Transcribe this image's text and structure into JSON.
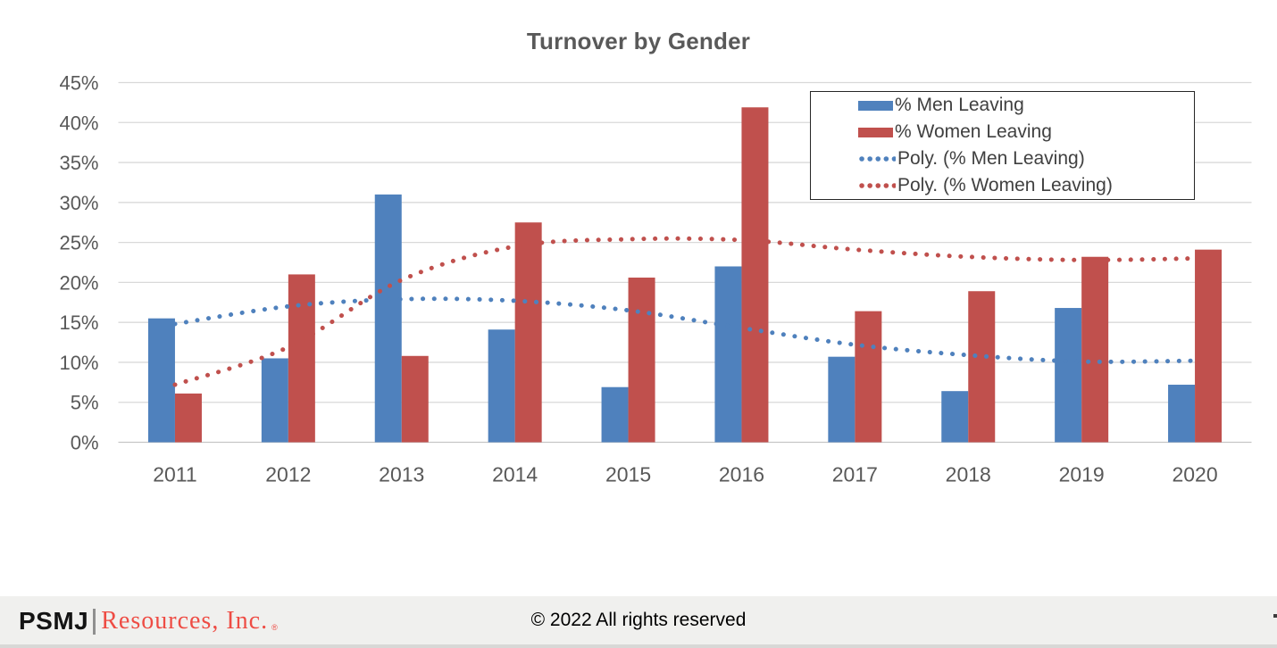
{
  "title": "Turnover by Gender",
  "chart_data": {
    "type": "bar",
    "title": "Turnover by Gender",
    "categories": [
      "2011",
      "2012",
      "2013",
      "2014",
      "2015",
      "2016",
      "2017",
      "2018",
      "2019",
      "2020"
    ],
    "series": [
      {
        "name": "% Men Leaving",
        "color": "#4f81bd",
        "values": [
          15.5,
          10.5,
          31.0,
          14.1,
          6.9,
          22.0,
          10.7,
          6.4,
          16.8,
          7.2
        ]
      },
      {
        "name": "% Women Leaving",
        "color": "#c0504d",
        "values": [
          6.1,
          21.0,
          10.8,
          27.5,
          20.6,
          41.9,
          16.4,
          18.9,
          23.2,
          24.1
        ]
      }
    ],
    "trendlines": [
      {
        "name": "Poly. (% Men Leaving)",
        "color": "#4f81bd",
        "style": "dotted",
        "values": [
          14.8,
          17.0,
          17.9,
          17.7,
          16.5,
          14.3,
          12.2,
          10.9,
          10.1,
          10.2
        ]
      },
      {
        "name": "Poly. (% Women Leaving)",
        "color": "#c0504d",
        "style": "dotted",
        "values": [
          7.2,
          11.9,
          20.3,
          24.5,
          25.4,
          25.3,
          24.1,
          23.2,
          22.8,
          23.0
        ]
      }
    ],
    "xlabel": "",
    "ylabel": "",
    "ylim": [
      0,
      45
    ],
    "ytick_step": 5,
    "ytick_labels": [
      "0%",
      "5%",
      "10%",
      "15%",
      "20%",
      "25%",
      "30%",
      "35%",
      "40%",
      "45%"
    ],
    "grid": "horizontal",
    "legend_position": "top-right",
    "colors": {
      "grid": "#d9d9d9",
      "axis_line": "#c6c6c6",
      "tick_text": "#595959",
      "title_text": "#595959"
    }
  },
  "footer": {
    "logo_psmj": "PSMJ",
    "logo_rest": "Resources, Inc.",
    "logo_reg": "®",
    "copyright": "© 2022 All rights reserved"
  }
}
